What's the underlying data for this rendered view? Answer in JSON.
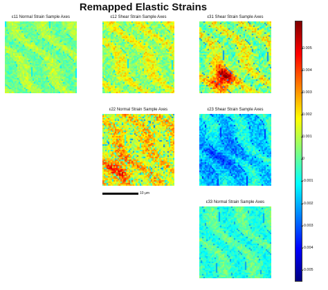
{
  "title": "Remapped Elastic Strains",
  "panels": [
    {
      "label": "ε11 Normal Strain Sample Axes",
      "mean": 0.0005,
      "variation": 0.001,
      "pattern": "diag"
    },
    {
      "label": "ε12 Shear Strain Sample Axes",
      "mean": 0.0011,
      "variation": 0.0014,
      "pattern": "diag"
    },
    {
      "label": "ε31 Shear Strain Sample Axes",
      "mean": 0.0009,
      "variation": 0.0018,
      "pattern": "hot"
    },
    {
      "label": "ε22 Normal Strain Sample Axes",
      "mean": 0.002,
      "variation": 0.0015,
      "pattern": "speckle"
    },
    {
      "label": "ε23 Shear Strain Sample Axes",
      "mean": -0.0012,
      "variation": 0.0013,
      "pattern": "cold"
    },
    {
      "label": "ε33 Normal Strain Sample Axes",
      "mean": -0.0004,
      "variation": 0.001,
      "pattern": "diag"
    }
  ],
  "scalebar": {
    "label": "10 μm"
  },
  "colorbar": {
    "min": -0.0055,
    "max": 0.0062,
    "ticks": [
      "0.005",
      "0.004",
      "0.003",
      "0.002",
      "0.001",
      "0",
      "-0.001",
      "-0.002",
      "-0.003",
      "-0.004",
      "-0.005"
    ],
    "tick_values": [
      0.005,
      0.004,
      0.003,
      0.002,
      0.001,
      0,
      -0.001,
      -0.002,
      -0.003,
      -0.004,
      -0.005
    ],
    "colormap": [
      "#00007f",
      "#0000ff",
      "#007fff",
      "#00ffff",
      "#7fff7f",
      "#ffff00",
      "#ff7f00",
      "#ff0000",
      "#7f0000"
    ]
  },
  "chart_data": {
    "type": "heatmap",
    "title": "Remapped Elastic Strains",
    "series": [
      {
        "name": "ε11 Normal Strain Sample Axes",
        "typical_value": 0.0005
      },
      {
        "name": "ε12 Shear Strain Sample Axes",
        "typical_value": 0.0011
      },
      {
        "name": "ε31 Shear Strain Sample Axes",
        "typical_value": 0.0009
      },
      {
        "name": "ε22 Normal Strain Sample Axes",
        "typical_value": 0.002
      },
      {
        "name": "ε23 Shear Strain Sample Axes",
        "typical_value": -0.0012
      },
      {
        "name": "ε33 Normal Strain Sample Axes",
        "typical_value": -0.0004
      }
    ],
    "color_range": [
      -0.0055,
      0.0062
    ],
    "colorbar_ticks": [
      0.005,
      0.004,
      0.003,
      0.002,
      0.001,
      0,
      -0.001,
      -0.002,
      -0.003,
      -0.004,
      -0.005
    ]
  }
}
